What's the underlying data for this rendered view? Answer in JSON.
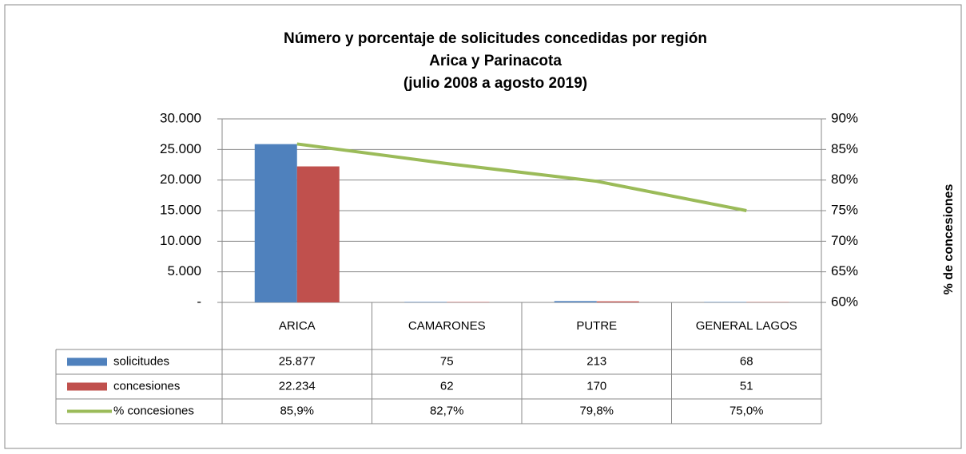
{
  "chart_data": {
    "type": "bar-line",
    "title": "Número y porcentaje de solicitudes concedidas por región",
    "subtitle": "Arica y Parinacota",
    "period": "(julio 2008 a agosto 2019)",
    "y2label": "% de concesiones",
    "categories": [
      "ARICA",
      "CAMARONES",
      "PUTRE",
      "GENERAL LAGOS"
    ],
    "series": [
      {
        "name": "solicitudes",
        "color": "#4f81bd",
        "type": "bar",
        "values": [
          25877,
          75,
          213,
          68
        ],
        "value_labels": [
          "25.877",
          "75",
          "213",
          "68"
        ]
      },
      {
        "name": "concesiones",
        "color": "#c0504d",
        "type": "bar",
        "values": [
          22234,
          62,
          170,
          51
        ],
        "value_labels": [
          "22.234",
          "62",
          "170",
          "51"
        ]
      },
      {
        "name": "% concesiones",
        "color": "#9bbb59",
        "type": "line",
        "axis": "y2",
        "values": [
          85.9,
          82.7,
          79.8,
          75.0
        ],
        "value_labels": [
          "85,9%",
          "82,7%",
          "79,8%",
          "75,0%"
        ]
      }
    ],
    "ylim": [
      0,
      30000
    ],
    "yticks": [
      {
        "value": 0,
        "label": "-"
      },
      {
        "value": 5000,
        "label": "5.000"
      },
      {
        "value": 10000,
        "label": "10.000"
      },
      {
        "value": 15000,
        "label": "15.000"
      },
      {
        "value": 20000,
        "label": "20.000"
      },
      {
        "value": 25000,
        "label": "25.000"
      },
      {
        "value": 30000,
        "label": "30.000"
      }
    ],
    "y2lim": [
      60,
      90
    ],
    "y2ticks": [
      {
        "value": 60,
        "label": "60%"
      },
      {
        "value": 65,
        "label": "65%"
      },
      {
        "value": 70,
        "label": "70%"
      },
      {
        "value": 75,
        "label": "75%"
      },
      {
        "value": 80,
        "label": "80%"
      },
      {
        "value": 85,
        "label": "85%"
      },
      {
        "value": 90,
        "label": "90%"
      }
    ],
    "grid": true
  }
}
